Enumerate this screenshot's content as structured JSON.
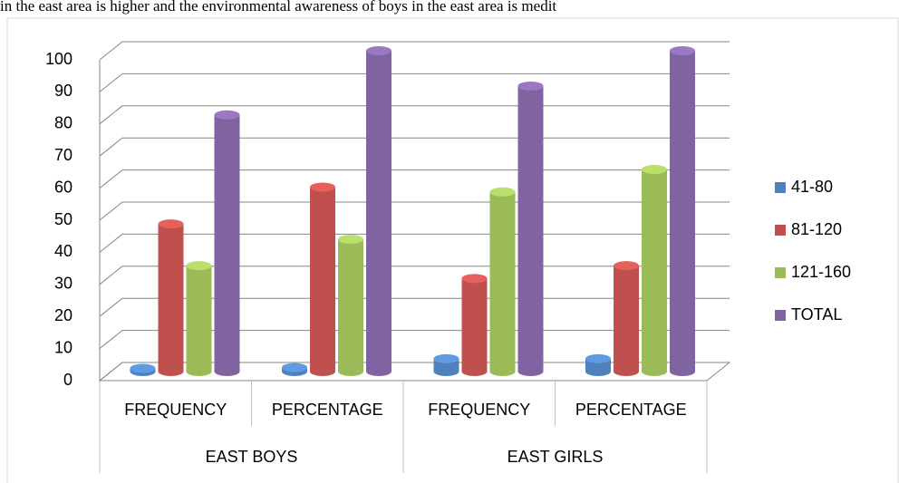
{
  "chart_data": {
    "type": "bar3d",
    "caption": "in the east area is higher and the environmental awareness of boys in the east area is medit",
    "categories": [
      "FREQUENCY",
      "PERCENTAGE",
      "FREQUENCY",
      "PERCENTAGE"
    ],
    "groups": [
      "EAST BOYS",
      "EAST GIRLS"
    ],
    "series": [
      {
        "name": "41-80",
        "color": "#4f81bd",
        "values": [
          1,
          1.25,
          4,
          4
        ]
      },
      {
        "name": "81-120",
        "color": "#c0504d",
        "values": [
          46,
          57.5,
          29,
          33
        ]
      },
      {
        "name": "121-160",
        "color": "#9bbb59",
        "values": [
          33,
          41.25,
          56,
          63
        ]
      },
      {
        "name": "TOTAL",
        "color": "#8064a2",
        "values": [
          80,
          100,
          89,
          100
        ]
      }
    ],
    "ylim": [
      0,
      100
    ],
    "yticks": [
      0,
      10,
      20,
      30,
      40,
      50,
      60,
      70,
      80,
      90,
      100
    ],
    "grid": true,
    "legend": "right"
  }
}
